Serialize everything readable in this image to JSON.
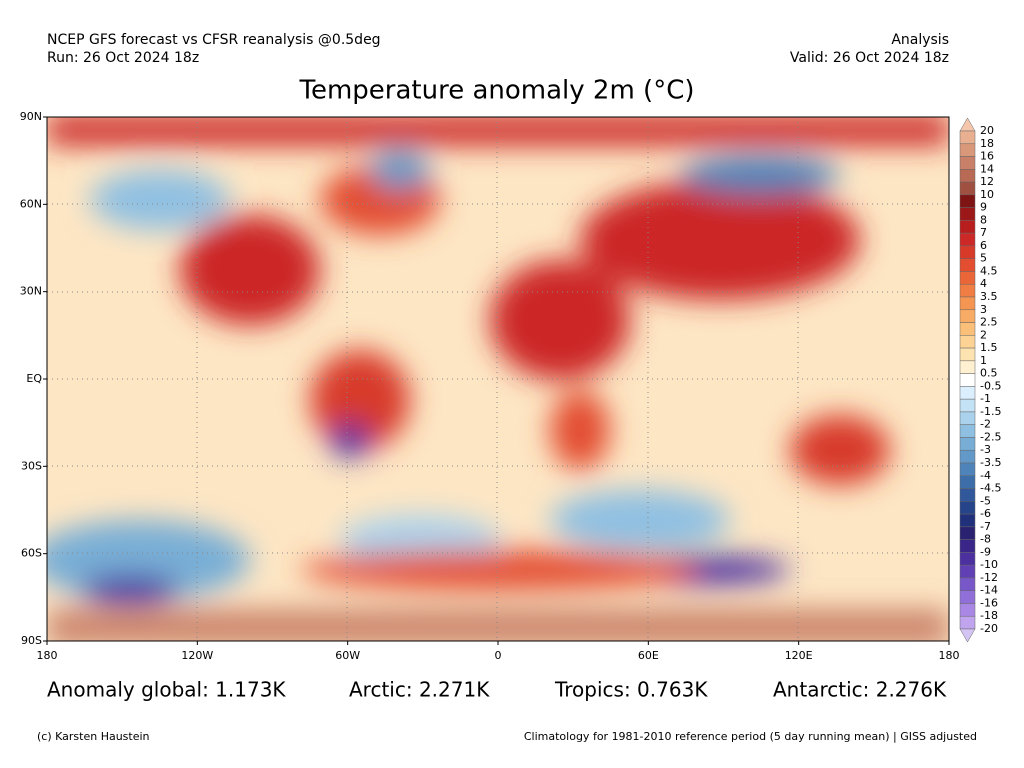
{
  "header": {
    "source": "NCEP GFS forecast vs CFSR reanalysis @0.5deg",
    "run": "Run: 26 Oct 2024 18z",
    "kind": "Analysis",
    "valid": "Valid: 26 Oct 2024 18z"
  },
  "title": "Temperature anomaly 2m (°C)",
  "map": {
    "lat_labels": [
      "90N",
      "60N",
      "30N",
      "EQ",
      "30S",
      "60S",
      "90S"
    ],
    "lon_labels": [
      "180",
      "120W",
      "60W",
      "0",
      "60E",
      "120E",
      "180"
    ]
  },
  "colorbar": {
    "labels": [
      "20",
      "18",
      "16",
      "14",
      "12",
      "10",
      "9",
      "8",
      "7",
      "6",
      "5",
      "4.5",
      "4",
      "3.5",
      "3",
      "2.5",
      "2",
      "1.5",
      "1",
      "0.5",
      "-0.5",
      "-1",
      "-1.5",
      "-2",
      "-2.5",
      "-3",
      "-3.5",
      "-4",
      "-4.5",
      "-5",
      "-6",
      "-7",
      "-8",
      "-9",
      "-10",
      "-12",
      "-14",
      "-16",
      "-18",
      "-20"
    ],
    "colors": [
      "#f5c6ab",
      "#e8b090",
      "#d9987a",
      "#c98068",
      "#b86a55",
      "#a05040",
      "#7e1414",
      "#9c1818",
      "#b81e1e",
      "#cc2828",
      "#d83a2a",
      "#e34e30",
      "#ea6638",
      "#f07e44",
      "#f49552",
      "#f7ab64",
      "#fac07a",
      "#fcd394",
      "#fde3b0",
      "#fef0d0",
      "#ffffff",
      "#dcefff",
      "#c4e2f5",
      "#aad2ec",
      "#8fc0e2",
      "#78aed6",
      "#6299c8",
      "#4e84ba",
      "#3e6eaa",
      "#30589a",
      "#26448a",
      "#20307a",
      "#2a2270",
      "#3a2688",
      "#4c30a0",
      "#6040b4",
      "#7858c8",
      "#9070d8",
      "#a888e4",
      "#c0a4ee",
      "#d4c4f4"
    ]
  },
  "stats": [
    "Anomaly global: 1.173K",
    "Arctic: 2.271K",
    "Tropics: 0.763K",
    "Antarctic: 2.276K"
  ],
  "footer": {
    "credit": "(c) Karsten Haustein",
    "note": "Climatology for 1981-2010 reference period (5 day running mean) | GISS adjusted"
  }
}
